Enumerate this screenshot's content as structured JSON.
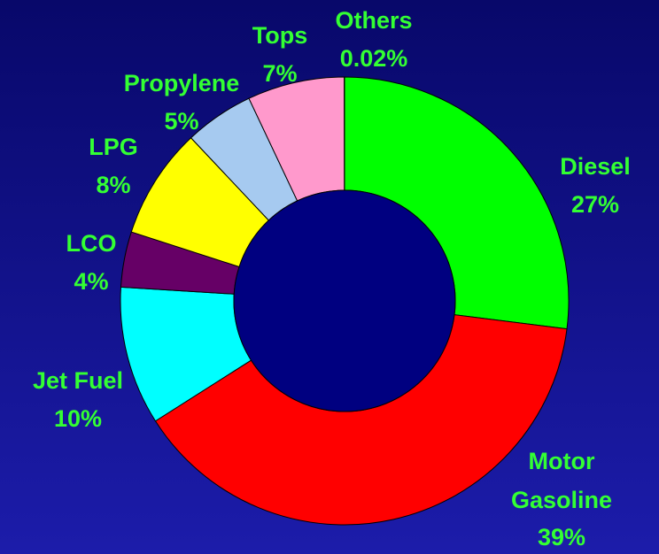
{
  "chart_data": {
    "type": "donut",
    "categories": [
      "Diesel",
      "Motor Gasoline",
      "Jet Fuel",
      "LCO",
      "LPG",
      "Propylene",
      "Tops",
      "Others"
    ],
    "values": [
      27,
      39,
      10,
      4,
      8,
      5,
      7,
      0.02
    ],
    "value_labels": [
      "27%",
      "39%",
      "10%",
      "4%",
      "8%",
      "5%",
      "7%",
      "0.02%"
    ],
    "colors": [
      "#00ff00",
      "#ff0000",
      "#00ffff",
      "#660066",
      "#ffff00",
      "#a6caf0",
      "#ff99cc",
      "#ff99cc"
    ]
  }
}
